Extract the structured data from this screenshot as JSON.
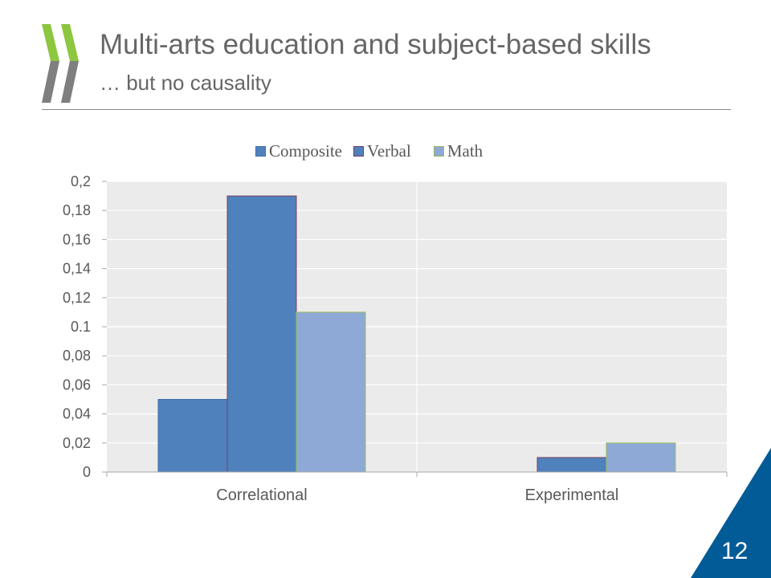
{
  "slide": {
    "title": "Multi-arts education and subject-based skills",
    "subtitle": "… but no causality",
    "page_number": "12",
    "logo": "OECD chevrons logo",
    "colors": {
      "logo_green": "#8DC63F",
      "logo_gray": "#7F7F7F",
      "corner_blue": "#005B96"
    }
  },
  "chart_data": {
    "type": "bar",
    "categories": [
      "Correlational",
      "Experimental"
    ],
    "series": [
      {
        "name": "Composite",
        "values": [
          0.05,
          0
        ],
        "color": "#4F81BD",
        "border": "#3F6FA8"
      },
      {
        "name": "Verbal",
        "values": [
          0.19,
          0.01
        ],
        "color": "#4F81BD",
        "border": "#7B3F5E"
      },
      {
        "name": "Math",
        "values": [
          0.11,
          0.02
        ],
        "color": "#8EA9D5",
        "border": "#9BBB59"
      }
    ],
    "ylim": [
      0,
      0.2
    ],
    "yticks": [
      "0",
      "0,02",
      "0,04",
      "0,06",
      "0,08",
      "0.1",
      "0,12",
      "0,14",
      "0,16",
      "0,18",
      "0,2"
    ],
    "grid": true,
    "legend": "top",
    "plot_background": "#EBEBEB"
  }
}
